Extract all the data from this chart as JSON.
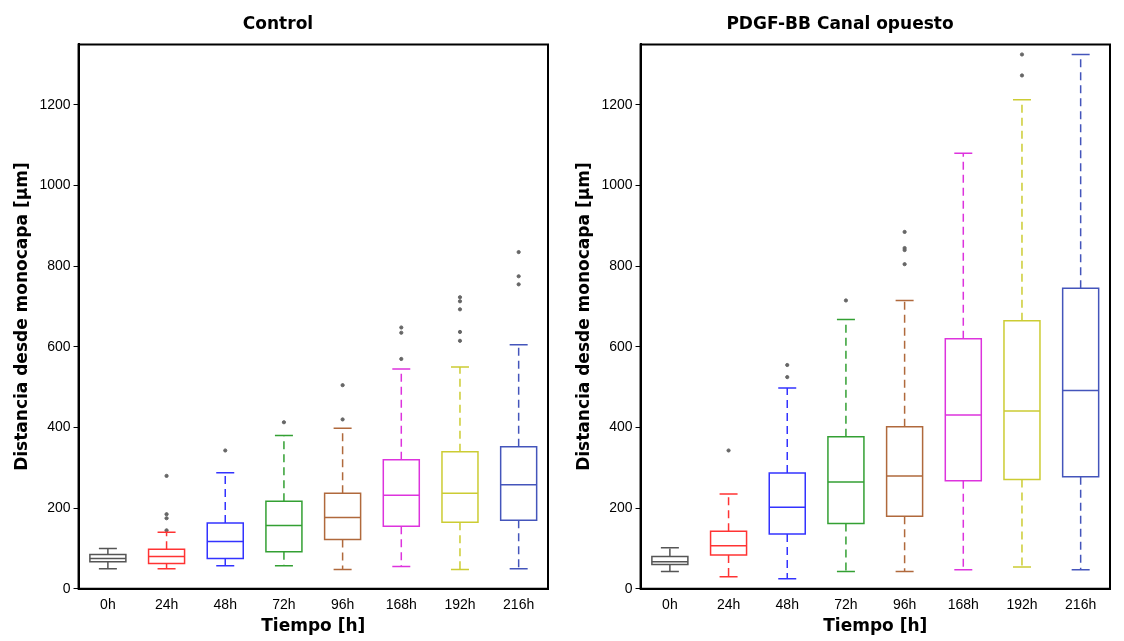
{
  "chart_data": [
    {
      "type": "box",
      "title": "Control",
      "xlabel": "Tiempo [h]",
      "ylabel": "Distancia desde monocapa [µm]",
      "categories": [
        "0h",
        "24h",
        "48h",
        "72h",
        "96h",
        "168h",
        "192h",
        "216h"
      ],
      "colors": [
        "#555555",
        "#ff3333",
        "#3333ff",
        "#33a033",
        "#b0693c",
        "#dd33dd",
        "#cccc33",
        "#4455bb"
      ],
      "boxes": [
        {
          "low": 50,
          "q1": 67,
          "median": 75,
          "q3": 85,
          "high": 100
        },
        {
          "low": 50,
          "q1": 63,
          "median": 80,
          "q3": 98,
          "high": 140,
          "outliers": [
            145,
            175,
            185,
            280
          ]
        },
        {
          "low": 57,
          "q1": 75,
          "median": 117,
          "q3": 163,
          "high": 288,
          "outliers": [
            343
          ]
        },
        {
          "low": 57,
          "q1": 92,
          "median": 157,
          "q3": 217,
          "high": 380,
          "outliers": [
            413
          ]
        },
        {
          "low": 48,
          "q1": 122,
          "median": 177,
          "q3": 237,
          "high": 398,
          "outliers": [
            420,
            505
          ]
        },
        {
          "low": 55,
          "q1": 155,
          "median": 232,
          "q3": 320,
          "high": 545,
          "outliers": [
            570,
            635,
            648
          ]
        },
        {
          "low": 48,
          "q1": 165,
          "median": 237,
          "q3": 340,
          "high": 550,
          "outliers": [
            615,
            637,
            693,
            713,
            723
          ]
        },
        {
          "low": 50,
          "q1": 170,
          "median": 258,
          "q3": 352,
          "high": 605,
          "outliers": [
            755,
            775,
            835
          ]
        }
      ],
      "ylim": [
        0,
        1350
      ],
      "yticks": [
        0,
        200,
        400,
        600,
        800,
        1000,
        1200
      ],
      "grid": false,
      "line_style": "dashed",
      "marker": "circle"
    },
    {
      "type": "box",
      "title": "PDGF-BB Canal opuesto",
      "xlabel": "Tiempo [h]",
      "ylabel": "Distancia desde monocapa [µm]",
      "categories": [
        "0h",
        "24h",
        "48h",
        "72h",
        "96h",
        "168h",
        "192h",
        "216h"
      ],
      "colors": [
        "#555555",
        "#ff3333",
        "#3333ff",
        "#33a033",
        "#b0693c",
        "#dd33dd",
        "#cccc33",
        "#4455bb"
      ],
      "boxes": [
        {
          "low": 43,
          "q1": 60,
          "median": 67,
          "q3": 80,
          "high": 102
        },
        {
          "low": 30,
          "q1": 84,
          "median": 107,
          "q3": 143,
          "high": 235,
          "outliers": [
            343
          ]
        },
        {
          "low": 25,
          "q1": 136,
          "median": 202,
          "q3": 287,
          "high": 498,
          "outliers": [
            525,
            555
          ]
        },
        {
          "low": 43,
          "q1": 162,
          "median": 265,
          "q3": 377,
          "high": 668,
          "outliers": [
            715
          ]
        },
        {
          "low": 43,
          "q1": 180,
          "median": 280,
          "q3": 402,
          "high": 715,
          "outliers": [
            805,
            840,
            845,
            885
          ]
        },
        {
          "low": 47,
          "q1": 268,
          "median": 431,
          "q3": 620,
          "high": 1080
        },
        {
          "low": 54,
          "q1": 271,
          "median": 441,
          "q3": 665,
          "high": 1213,
          "outliers": [
            1273,
            1325
          ]
        },
        {
          "low": 47,
          "q1": 278,
          "median": 492,
          "q3": 745,
          "high": 1325
        }
      ],
      "ylim": [
        0,
        1350
      ],
      "yticks": [
        0,
        200,
        400,
        600,
        800,
        1000,
        1200
      ],
      "grid": false,
      "line_style": "dashed",
      "marker": "circle"
    }
  ]
}
